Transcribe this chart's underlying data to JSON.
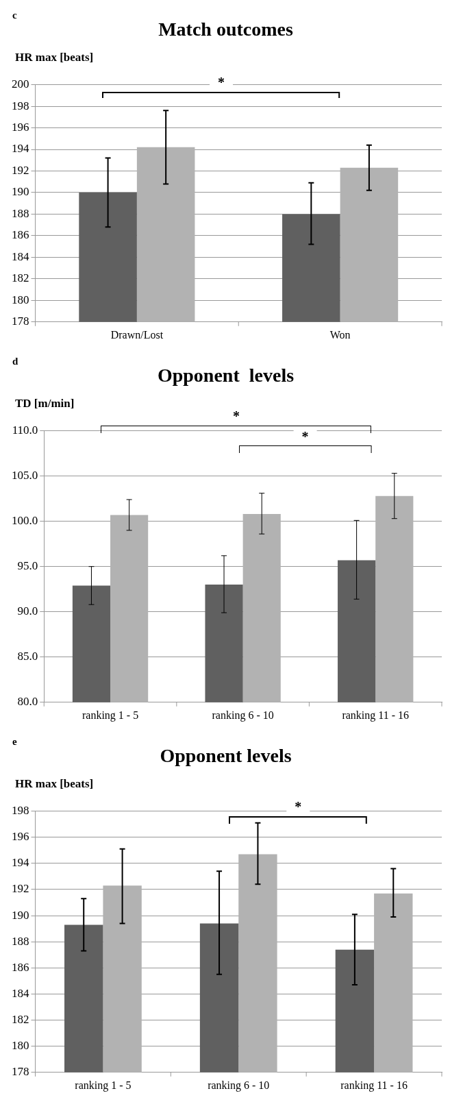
{
  "chart_data": [
    {
      "type": "bar",
      "title": "Match outcomes",
      "ylabel": "HR max [beats]",
      "categories": [
        "Drawn/Lost",
        "Won"
      ],
      "series": [
        {
          "color": "#606060",
          "values": [
            190.0,
            188.0
          ],
          "errors": [
            [
              186.8,
              193.2
            ],
            [
              185.2,
              190.9
            ]
          ]
        },
        {
          "color": "#b2b2b2",
          "values": [
            194.2,
            192.3
          ],
          "errors": [
            [
              190.8,
              197.6
            ],
            [
              190.2,
              194.4
            ]
          ]
        }
      ],
      "ylim": [
        178,
        200
      ],
      "yticks": [
        178,
        180,
        182,
        184,
        186,
        188,
        190,
        192,
        194,
        196,
        198,
        200
      ],
      "grid": "y",
      "legend": false,
      "annotations": [
        "c",
        "*"
      ]
    },
    {
      "type": "bar",
      "title": "Opponent  levels",
      "ylabel": "TD [m/min]",
      "categories": [
        "ranking 1 - 5",
        "ranking 6 - 10",
        "ranking 11 - 16"
      ],
      "series": [
        {
          "color": "#606060",
          "values": [
            92.9,
            93.0,
            95.7
          ],
          "errors": [
            [
              90.8,
              95.0
            ],
            [
              89.9,
              96.2
            ],
            [
              91.4,
              100.1
            ]
          ]
        },
        {
          "color": "#b2b2b2",
          "values": [
            100.7,
            100.8,
            102.8
          ],
          "errors": [
            [
              99.0,
              102.4
            ],
            [
              98.6,
              103.1
            ],
            [
              100.3,
              105.3
            ]
          ]
        }
      ],
      "ylim": [
        80,
        110
      ],
      "yticks": [
        {
          "value": 80,
          "label": "80.0"
        },
        {
          "value": 85,
          "label": "85.0"
        },
        {
          "value": 90,
          "label": "90.0"
        },
        {
          "value": 95,
          "label": "95.0"
        },
        {
          "value": 100,
          "label": "100.0"
        },
        {
          "value": 105,
          "label": "105.0"
        },
        {
          "value": 110,
          "label": "110.0"
        }
      ],
      "grid": "y",
      "legend": false,
      "annotations": [
        "d",
        "*",
        "*"
      ]
    },
    {
      "type": "bar",
      "title": "Opponent levels",
      "ylabel": "HR max [beats]",
      "categories": [
        "ranking 1 - 5",
        "ranking 6 - 10",
        "ranking 11 - 16"
      ],
      "series": [
        {
          "color": "#606060",
          "values": [
            189.3,
            189.4,
            187.4
          ],
          "errors": [
            [
              187.3,
              191.3
            ],
            [
              185.5,
              193.4
            ],
            [
              184.7,
              190.1
            ]
          ]
        },
        {
          "color": "#b2b2b2",
          "values": [
            192.3,
            194.7,
            191.7
          ],
          "errors": [
            [
              189.4,
              195.1
            ],
            [
              192.4,
              197.1
            ],
            [
              189.9,
              193.6
            ]
          ]
        }
      ],
      "ylim": [
        178,
        198
      ],
      "yticks": [
        178,
        180,
        182,
        184,
        186,
        188,
        190,
        192,
        194,
        196,
        198
      ],
      "grid": "y",
      "legend": false,
      "annotations": [
        "e",
        "*"
      ]
    }
  ]
}
